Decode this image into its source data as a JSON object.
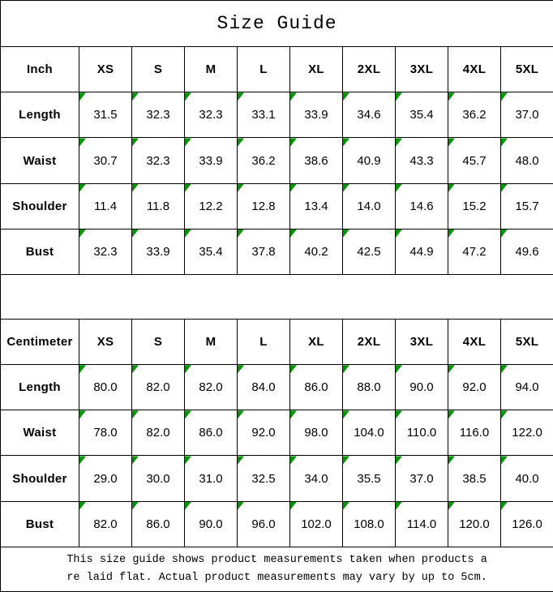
{
  "page": {
    "title": "Size Guide",
    "background_color": "#ffffff",
    "border_color": "#000000",
    "text_color": "#000000",
    "marker_color": "#029402"
  },
  "chart_data": [
    {
      "type": "table",
      "title": "Size Guide",
      "unit": "Inch",
      "columns": [
        "Inch",
        "XS",
        "S",
        "M",
        "L",
        "XL",
        "2XL",
        "3XL",
        "4XL",
        "5XL"
      ],
      "rows": [
        [
          "Length",
          "31.5",
          "32.3",
          "32.3",
          "33.1",
          "33.9",
          "34.6",
          "35.4",
          "36.2",
          "37.0"
        ],
        [
          "Waist",
          "30.7",
          "32.3",
          "33.9",
          "36.2",
          "38.6",
          "40.9",
          "43.3",
          "45.7",
          "48.0"
        ],
        [
          "Shoulder",
          "11.4",
          "11.8",
          "12.2",
          "12.8",
          "13.4",
          "14.0",
          "14.6",
          "15.2",
          "15.7"
        ],
        [
          "Bust",
          "32.3",
          "33.9",
          "35.4",
          "37.8",
          "40.2",
          "42.5",
          "44.9",
          "47.2",
          "49.6"
        ]
      ]
    },
    {
      "type": "table",
      "title": "Size Guide",
      "unit": "Centimeter",
      "columns": [
        "Centimeter",
        "XS",
        "S",
        "M",
        "L",
        "XL",
        "2XL",
        "3XL",
        "4XL",
        "5XL"
      ],
      "rows": [
        [
          "Length",
          "80.0",
          "82.0",
          "82.0",
          "84.0",
          "86.0",
          "88.0",
          "90.0",
          "92.0",
          "94.0"
        ],
        [
          "Waist",
          "78.0",
          "82.0",
          "86.0",
          "92.0",
          "98.0",
          "104.0",
          "110.0",
          "116.0",
          "122.0"
        ],
        [
          "Shoulder",
          "29.0",
          "30.0",
          "31.0",
          "32.5",
          "34.0",
          "35.5",
          "37.0",
          "38.5",
          "40.0"
        ],
        [
          "Bust",
          "82.0",
          "86.0",
          "90.0",
          "96.0",
          "102.0",
          "108.0",
          "114.0",
          "120.0",
          "126.0"
        ]
      ]
    }
  ],
  "footer": {
    "lines": [
      "This size guide shows product measurements taken when products a",
      "re laid flat. Actual product measurements may vary by up to 5cm."
    ]
  }
}
